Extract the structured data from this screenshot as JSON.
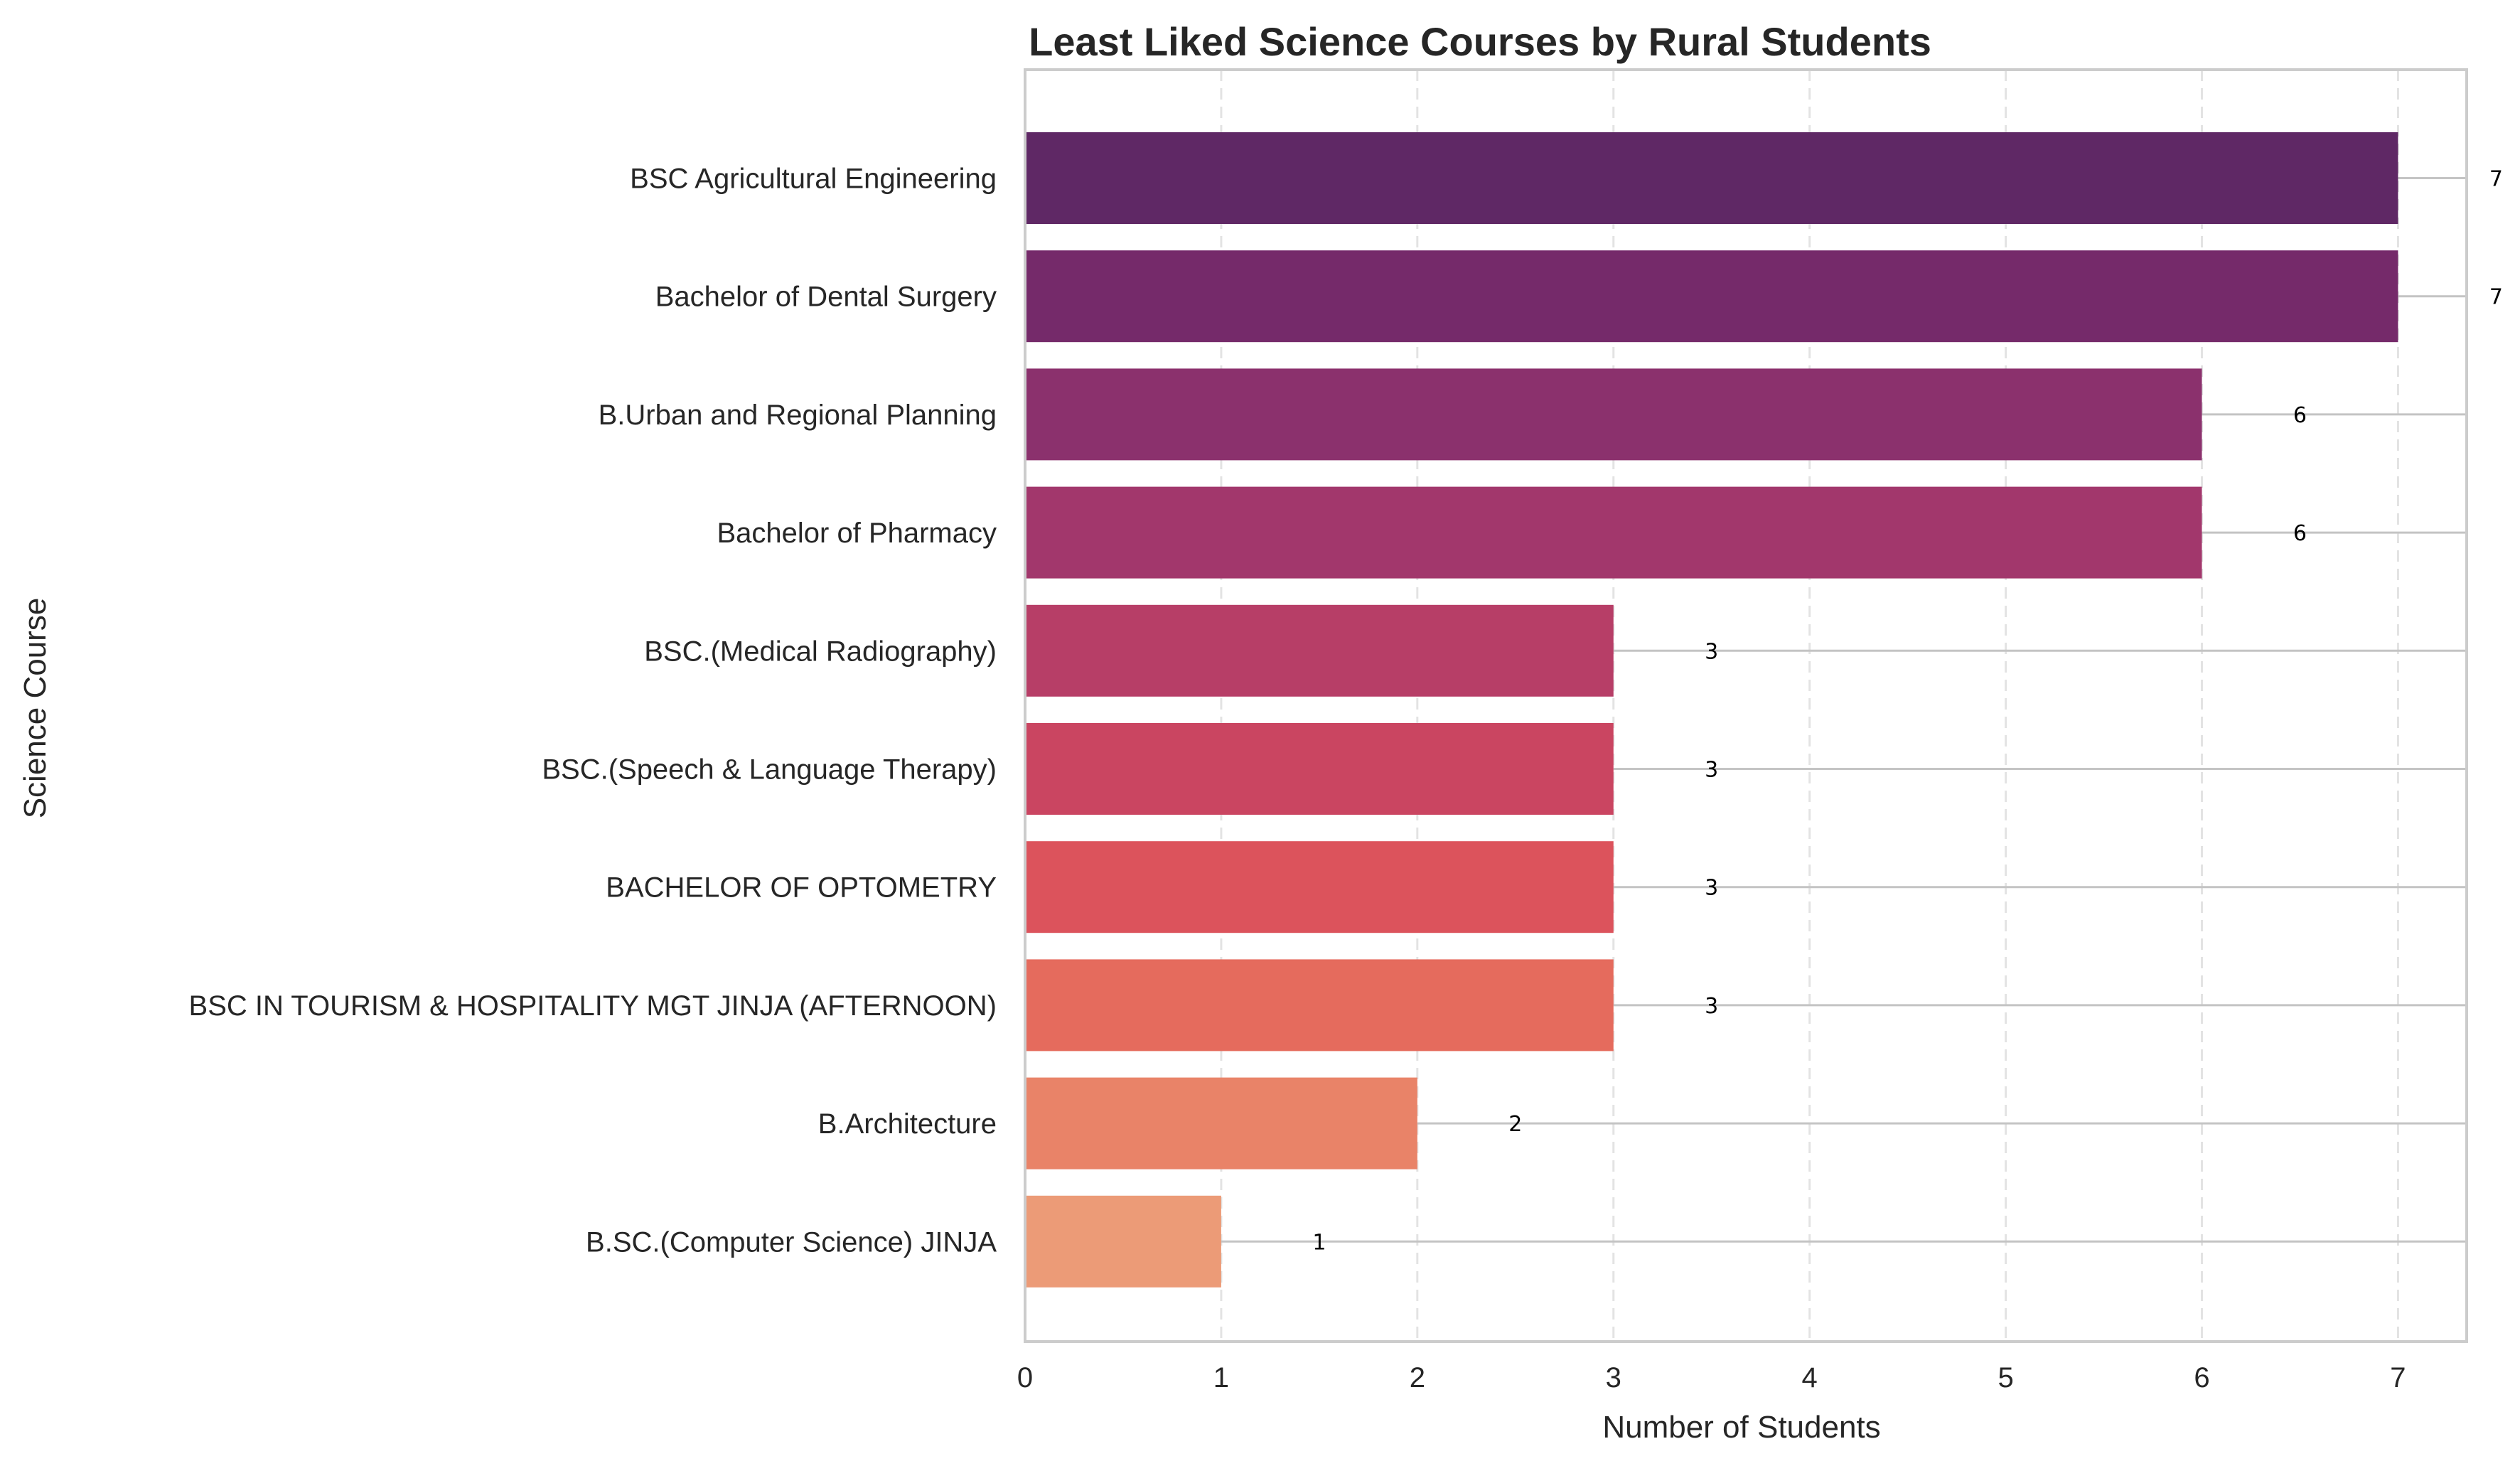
{
  "chart_data": {
    "type": "bar",
    "orientation": "horizontal",
    "title": "Least Liked Science Courses by Rural Students",
    "xlabel": "Number of Students",
    "ylabel": "Science Course",
    "xlim": [
      0,
      7.35
    ],
    "xticks": [
      "0",
      "1",
      "2",
      "3",
      "4",
      "5",
      "6",
      "7"
    ],
    "grid": true,
    "categories": [
      "BSC Agricultural Engineering",
      "Bachelor of Dental Surgery",
      "B.Urban and Regional Planning",
      "Bachelor of Pharmacy",
      "BSC.(Medical Radiography)",
      "BSC.(Speech & Language Therapy)",
      "BACHELOR OF OPTOMETRY",
      "BSC IN TOURISM & HOSPITALITY MGT JINJA (AFTERNOON)",
      "B.Architecture",
      "B.SC.(Computer Science) JINJA"
    ],
    "values": [
      7,
      7,
      6,
      6,
      3,
      3,
      3,
      3,
      2,
      1
    ],
    "value_labels": [
      "7",
      "7",
      "6",
      "6",
      "3",
      "3",
      "3",
      "3",
      "2",
      "1"
    ],
    "colors": [
      "#5f2865",
      "#752a6a",
      "#8b316d",
      "#a2376c",
      "#b73e67",
      "#ca4561",
      "#dc535c",
      "#e56b5d",
      "#e98368",
      "#ec9b77"
    ]
  }
}
